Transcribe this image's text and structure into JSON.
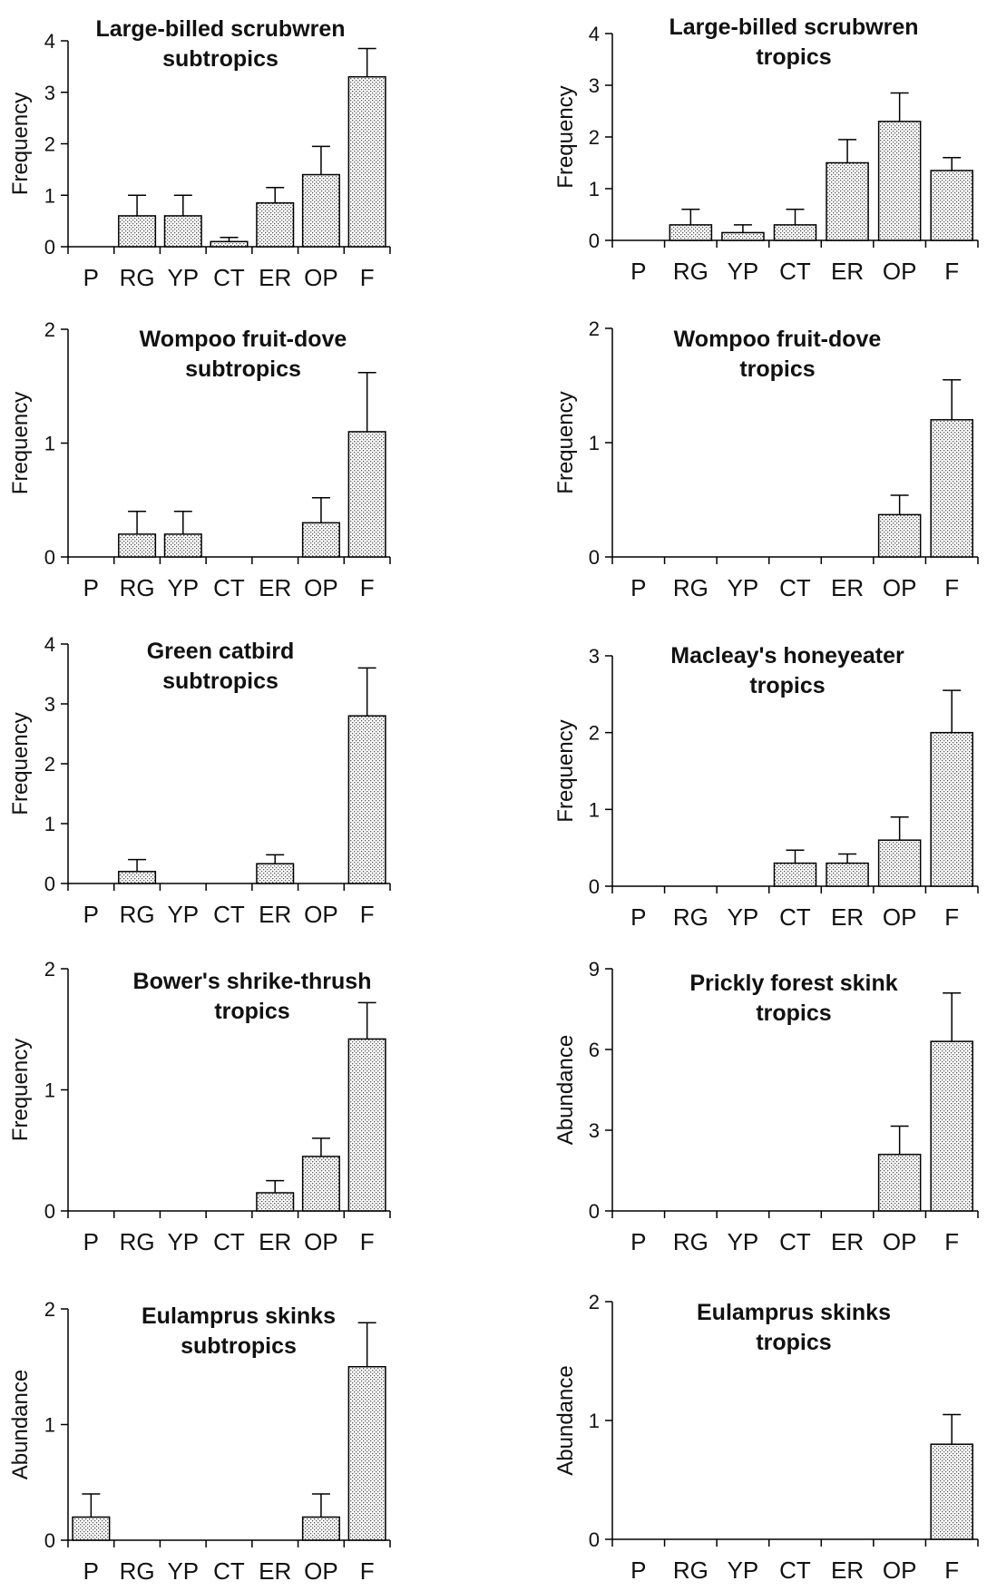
{
  "chart_data": [
    {
      "type": "bar",
      "title": "Large-billed scrubwren",
      "subtitle": "subtropics",
      "ylabel": "Frequency",
      "categories": [
        "P",
        "RG",
        "YP",
        "CT",
        "ER",
        "OP",
        "F"
      ],
      "values": [
        0,
        0.6,
        0.6,
        0.1,
        0.85,
        1.4,
        3.3
      ],
      "errors": [
        0,
        0.4,
        0.4,
        0.08,
        0.3,
        0.55,
        0.55
      ],
      "ylim": [
        0,
        4
      ],
      "yticks": [
        0,
        1,
        2,
        3,
        4
      ],
      "grid": false
    },
    {
      "type": "bar",
      "title": "Large-billed scrubwren",
      "subtitle": "tropics",
      "ylabel": "Frequency",
      "categories": [
        "P",
        "RG",
        "YP",
        "CT",
        "ER",
        "OP",
        "F"
      ],
      "values": [
        0,
        0.3,
        0.15,
        0.3,
        1.5,
        2.3,
        1.35
      ],
      "errors": [
        0,
        0.3,
        0.15,
        0.3,
        0.45,
        0.55,
        0.25
      ],
      "ylim": [
        0,
        4
      ],
      "yticks": [
        0,
        1,
        2,
        3,
        4
      ],
      "grid": false
    },
    {
      "type": "bar",
      "title": "Wompoo fruit-dove",
      "subtitle": "subtropics",
      "ylabel": "Frequency",
      "categories": [
        "P",
        "RG",
        "YP",
        "CT",
        "ER",
        "OP",
        "F"
      ],
      "values": [
        0,
        0.2,
        0.2,
        0,
        0,
        0.3,
        1.1
      ],
      "errors": [
        0,
        0.2,
        0.2,
        0,
        0,
        0.22,
        0.52
      ],
      "ylim": [
        0,
        2
      ],
      "yticks": [
        0,
        1,
        2
      ],
      "grid": false
    },
    {
      "type": "bar",
      "title": "Wompoo fruit-dove",
      "subtitle": "tropics",
      "ylabel": "Frequency",
      "categories": [
        "P",
        "RG",
        "YP",
        "CT",
        "ER",
        "OP",
        "F"
      ],
      "values": [
        0,
        0,
        0,
        0,
        0,
        0.37,
        1.2
      ],
      "errors": [
        0,
        0,
        0,
        0,
        0,
        0.17,
        0.35
      ],
      "ylim": [
        0,
        2
      ],
      "yticks": [
        0,
        1,
        2
      ],
      "grid": false
    },
    {
      "type": "bar",
      "title": "Green catbird",
      "subtitle": "subtropics",
      "ylabel": "Frequency",
      "categories": [
        "P",
        "RG",
        "YP",
        "CT",
        "ER",
        "OP",
        "F"
      ],
      "values": [
        0,
        0.2,
        0,
        0,
        0.33,
        0,
        2.8
      ],
      "errors": [
        0,
        0.2,
        0,
        0,
        0.15,
        0,
        0.8
      ],
      "ylim": [
        0,
        4
      ],
      "yticks": [
        0,
        1,
        2,
        3,
        4
      ],
      "grid": false
    },
    {
      "type": "bar",
      "title": "Macleay's honeyeater",
      "subtitle": "tropics",
      "ylabel": "Frequency",
      "categories": [
        "P",
        "RG",
        "YP",
        "CT",
        "ER",
        "OP",
        "F"
      ],
      "values": [
        0,
        0,
        0,
        0.3,
        0.3,
        0.6,
        2.0
      ],
      "errors": [
        0,
        0,
        0,
        0.17,
        0.12,
        0.3,
        0.55
      ],
      "ylim": [
        0,
        3
      ],
      "yticks": [
        0,
        1,
        2,
        3
      ],
      "grid": false
    },
    {
      "type": "bar",
      "title": "Bower's shrike-thrush",
      "subtitle": "tropics",
      "ylabel": "Frequency",
      "categories": [
        "P",
        "RG",
        "YP",
        "CT",
        "ER",
        "OP",
        "F"
      ],
      "values": [
        0,
        0,
        0,
        0,
        0.15,
        0.45,
        1.42
      ],
      "errors": [
        0,
        0,
        0,
        0,
        0.1,
        0.15,
        0.3
      ],
      "ylim": [
        0,
        2
      ],
      "yticks": [
        0,
        1,
        2
      ],
      "grid": false
    },
    {
      "type": "bar",
      "title": "Prickly forest skink",
      "subtitle": "tropics",
      "ylabel": "Abundance",
      "categories": [
        "P",
        "RG",
        "YP",
        "CT",
        "ER",
        "OP",
        "F"
      ],
      "values": [
        0,
        0,
        0,
        0,
        0,
        2.1,
        6.3
      ],
      "errors": [
        0,
        0,
        0,
        0,
        0,
        1.05,
        1.8
      ],
      "ylim": [
        0,
        9
      ],
      "yticks": [
        0,
        3,
        6,
        9
      ],
      "grid": false
    },
    {
      "type": "bar",
      "title": "Eulamprus skinks",
      "subtitle": "subtropics",
      "ylabel": "Abundance",
      "categories": [
        "P",
        "RG",
        "YP",
        "CT",
        "ER",
        "OP",
        "F"
      ],
      "values": [
        0.2,
        0,
        0,
        0,
        0,
        0.2,
        1.5
      ],
      "errors": [
        0.2,
        0,
        0,
        0,
        0,
        0.2,
        0.38
      ],
      "ylim": [
        0,
        2
      ],
      "yticks": [
        0,
        1,
        2
      ],
      "grid": false
    },
    {
      "type": "bar",
      "title": "Eulamprus skinks",
      "subtitle": "tropics",
      "ylabel": "Abundance",
      "categories": [
        "P",
        "RG",
        "YP",
        "CT",
        "ER",
        "OP",
        "F"
      ],
      "values": [
        0,
        0,
        0,
        0,
        0,
        0,
        0.8
      ],
      "errors": [
        0,
        0,
        0,
        0,
        0,
        0,
        0.25
      ],
      "ylim": [
        0,
        2
      ],
      "yticks": [
        0,
        1,
        2
      ],
      "grid": false
    }
  ]
}
